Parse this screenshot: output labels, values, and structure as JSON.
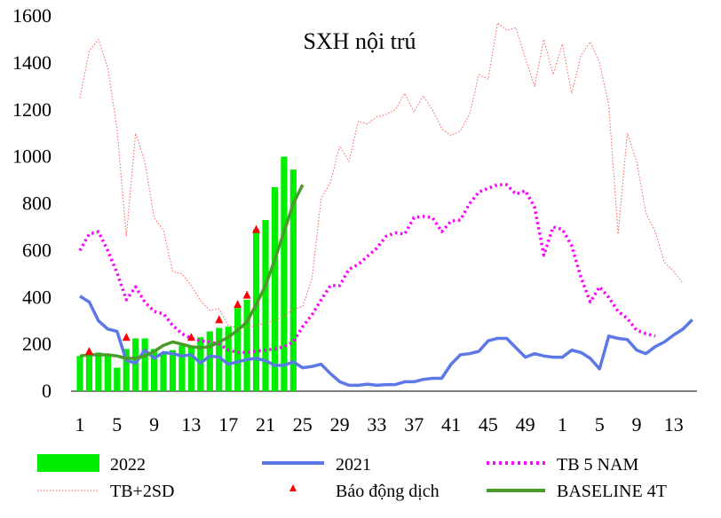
{
  "chart_data": {
    "type": "bar+line",
    "title": "SXH nội trú",
    "xlabel": "",
    "ylabel": "",
    "ylim": [
      0,
      1600
    ],
    "y_ticks": [
      0,
      200,
      400,
      600,
      800,
      1000,
      1200,
      1400,
      1600
    ],
    "x_tick_labels": [
      "1",
      "5",
      "9",
      "13",
      "17",
      "21",
      "25",
      "29",
      "33",
      "37",
      "41",
      "45",
      "49",
      "1",
      "5",
      "9",
      "13"
    ],
    "n_points": 67,
    "colors": {
      "bar": "#00ee00",
      "y2021": "#5b78e6",
      "tb5": "#ff00ff",
      "sd2": "#ff5b5b",
      "alarm": "#ff0000",
      "baseline": "#4c9a2a"
    },
    "legend": {
      "bar": "2022",
      "y2021": "2021",
      "tb5": "TB 5 NAM",
      "sd2": "TB+2SD",
      "alarm": "Báo động dịch",
      "baseline": "BASELINE 4T"
    },
    "series": [
      {
        "key": "bar",
        "name": "2022",
        "start": 0,
        "values": [
          150,
          155,
          165,
          160,
          100,
          180,
          225,
          225,
          180,
          165,
          175,
          195,
          190,
          230,
          255,
          270,
          275,
          355,
          390,
          690,
          730,
          870,
          1000,
          945
        ]
      },
      {
        "key": "y2021",
        "name": "2021",
        "start": 0,
        "values": [
          405,
          380,
          300,
          265,
          255,
          130,
          120,
          175,
          140,
          165,
          160,
          150,
          155,
          120,
          150,
          145,
          115,
          125,
          135,
          140,
          130,
          110,
          110,
          125,
          100,
          105,
          115,
          75,
          40,
          25,
          25,
          30,
          25,
          28,
          28,
          40,
          40,
          50,
          55,
          55,
          115,
          155,
          160,
          170,
          215,
          225,
          225,
          185,
          145,
          160,
          150,
          145,
          145,
          175,
          165,
          140,
          95,
          235,
          225,
          220,
          175,
          160,
          190,
          210,
          240,
          265,
          305
        ]
      },
      {
        "key": "tb5",
        "name": "TB 5 NAM",
        "start": 0,
        "values": [
          600,
          670,
          680,
          600,
          505,
          390,
          445,
          380,
          340,
          330,
          280,
          245,
          225,
          215,
          210,
          200,
          175,
          165,
          165,
          170,
          175,
          180,
          190,
          210,
          275,
          325,
          390,
          450,
          450,
          520,
          540,
          575,
          610,
          660,
          675,
          670,
          740,
          745,
          740,
          680,
          725,
          730,
          800,
          850,
          865,
          880,
          880,
          840,
          855,
          785,
          580,
          700,
          690,
          620,
          485,
          380,
          445,
          400,
          340,
          310,
          260,
          245,
          235
        ]
      },
      {
        "key": "sd2",
        "name": "TB+2SD",
        "start": 0,
        "values": [
          1250,
          1450,
          1500,
          1380,
          1120,
          660,
          1100,
          980,
          740,
          685,
          510,
          500,
          450,
          385,
          345,
          350,
          280,
          270,
          270,
          280,
          290,
          300,
          320,
          350,
          360,
          480,
          820,
          890,
          1045,
          980,
          1150,
          1140,
          1170,
          1180,
          1200,
          1270,
          1190,
          1260,
          1200,
          1120,
          1090,
          1110,
          1180,
          1350,
          1330,
          1570,
          1540,
          1550,
          1420,
          1300,
          1500,
          1350,
          1480,
          1270,
          1430,
          1490,
          1400,
          1220,
          670,
          1100,
          980,
          760,
          680,
          550,
          510,
          460
        ]
      },
      {
        "key": "baseline",
        "name": "BASELINE 4T",
        "start": 0,
        "values": [
          150,
          155,
          155,
          155,
          150,
          140,
          140,
          150,
          170,
          195,
          210,
          200,
          190,
          185,
          190,
          210,
          230,
          260,
          295,
          370,
          450,
          560,
          680,
          800,
          880
        ]
      }
    ],
    "alarms": {
      "name": "Báo động dịch",
      "points": [
        [
          1,
          170
        ],
        [
          5,
          230
        ],
        [
          12,
          230
        ],
        [
          15,
          305
        ],
        [
          17,
          370
        ],
        [
          18,
          410
        ],
        [
          19,
          690
        ]
      ]
    }
  }
}
